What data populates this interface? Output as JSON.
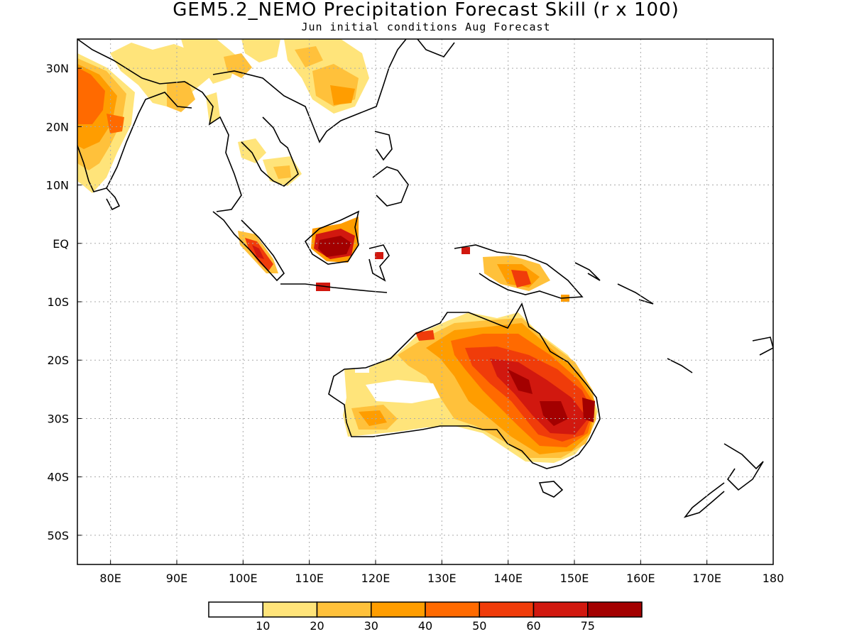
{
  "title": "GEM5.2_NEMO Precipitation Forecast Skill (r x 100)",
  "subtitle": "Jun initial conditions  Aug Forecast",
  "map": {
    "lon_range": [
      75,
      180
    ],
    "lat_range": [
      -55,
      35
    ],
    "gridlines": "dotted",
    "lon_ticks": [
      {
        "lon": 80,
        "label": "80E"
      },
      {
        "lon": 90,
        "label": "90E"
      },
      {
        "lon": 100,
        "label": "100E"
      },
      {
        "lon": 110,
        "label": "110E"
      },
      {
        "lon": 120,
        "label": "120E"
      },
      {
        "lon": 130,
        "label": "130E"
      },
      {
        "lon": 140,
        "label": "140E"
      },
      {
        "lon": 150,
        "label": "150E"
      },
      {
        "lon": 160,
        "label": "160E"
      },
      {
        "lon": 170,
        "label": "170E"
      },
      {
        "lon": 180,
        "label": "180"
      }
    ],
    "lat_ticks": [
      {
        "lat": 30,
        "label": "30N"
      },
      {
        "lat": 20,
        "label": "20N"
      },
      {
        "lat": 10,
        "label": "10N"
      },
      {
        "lat": 0,
        "label": "EQ"
      },
      {
        "lat": -10,
        "label": "10S"
      },
      {
        "lat": -20,
        "label": "20S"
      },
      {
        "lat": -30,
        "label": "30S"
      },
      {
        "lat": -40,
        "label": "40S"
      },
      {
        "lat": -50,
        "label": "50S"
      }
    ]
  },
  "colorbar": {
    "colors": [
      "#ffffff",
      "#ffe47a",
      "#ffc13b",
      "#ff9d00",
      "#ff6a00",
      "#f03c0a",
      "#d1180f",
      "#a30000"
    ],
    "labels": [
      "10",
      "20",
      "30",
      "40",
      "50",
      "60",
      "75"
    ]
  }
}
